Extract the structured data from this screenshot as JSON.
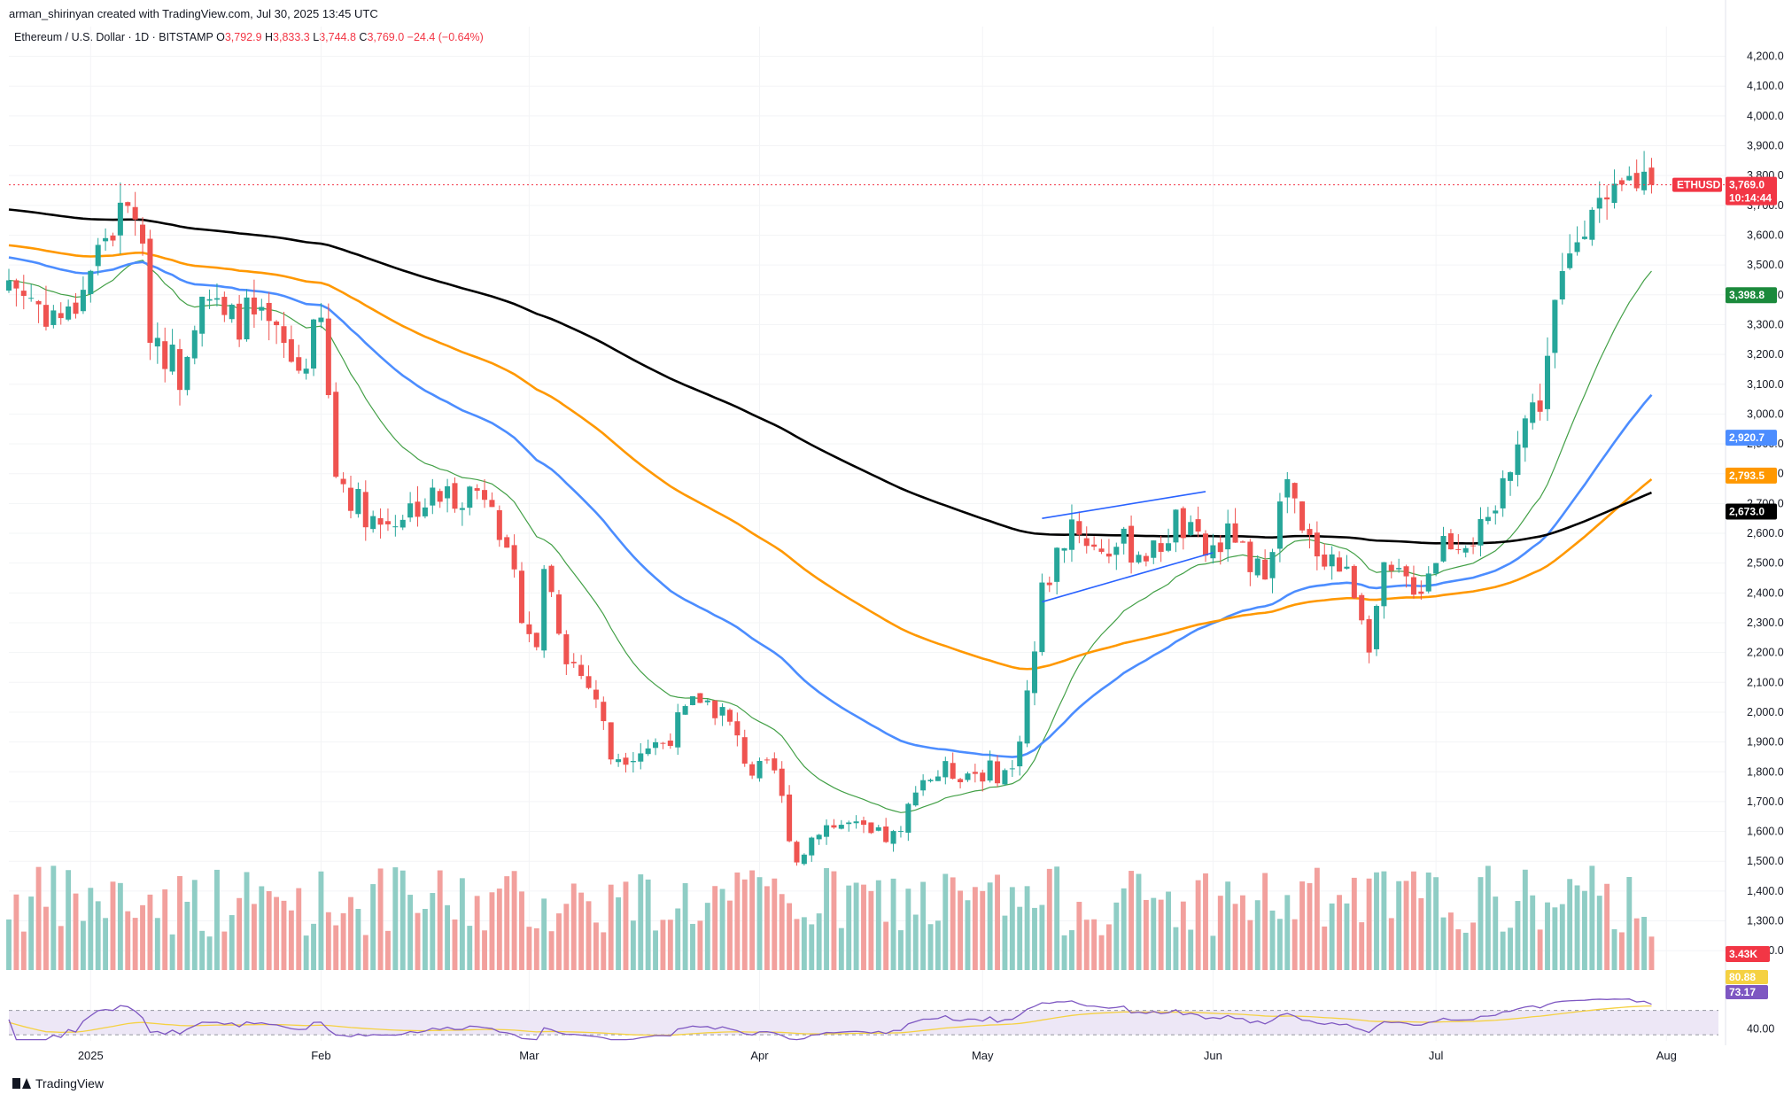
{
  "header": {
    "author_line": "arman_shirinyan created with TradingView.com, Jul 30, 2025 13:45 UTC",
    "symbol_desc": "Ethereum / U.S. Dollar · 1D · BITSTAMP",
    "o_label": "O",
    "o_value": "3,792.9",
    "h_label": "H",
    "h_value": "3,833.3",
    "l_label": "L",
    "l_value": "3,744.8",
    "c_label": "C",
    "c_value": "3,769.0",
    "change": "−24.4 (−0.64%)"
  },
  "footer": {
    "logo_text": "TradingView"
  },
  "colors": {
    "up": "#26a69a",
    "down": "#ef5350",
    "vol_up": "#8fcdc5",
    "vol_down": "#f2a09d",
    "ema_20": "#43a047",
    "ema_50": "#4c8dff",
    "ema_100": "#ff9800",
    "ema_200": "#000000",
    "rsi_line": "#7e57c2",
    "rsi_ma": "#f5d142",
    "rsi_band": "#ede7f6",
    "channel": "#2962ff",
    "price_line": "#f23645"
  },
  "chart_data": {
    "type": "candlestick",
    "y_axis": {
      "min": 1300,
      "max": 4200,
      "ticks": [
        "4,200.0",
        "4,100.0",
        "4,000.0",
        "3,900.0",
        "3,800.0",
        "3,700.0",
        "3,600.0",
        "3,500.0",
        "3,400.0",
        "3,300.0",
        "3,200.0",
        "3,100.0",
        "3,000.0",
        "2,900.0",
        "2,800.0",
        "2,700.0",
        "2,600.0",
        "2,500.0",
        "2,400.0",
        "2,300.0",
        "2,200.0",
        "2,100.0",
        "2,000.0",
        "1,900.0",
        "1,800.0",
        "1,700.0",
        "1,600.0",
        "1,500.0",
        "1,400.0",
        "1,300.0",
        "1,200.0"
      ]
    },
    "x_axis": {
      "start_date": "2024-12-21",
      "end_date": "2025-08-08",
      "ticks": [
        {
          "label": "2025",
          "date": "2025-01-01"
        },
        {
          "label": "Feb",
          "date": "2025-02-01"
        },
        {
          "label": "Mar",
          "date": "2025-03-01"
        },
        {
          "label": "Apr",
          "date": "2025-04-01"
        },
        {
          "label": "May",
          "date": "2025-05-01"
        },
        {
          "label": "Jun",
          "date": "2025-06-01"
        },
        {
          "label": "Jul",
          "date": "2025-07-01"
        },
        {
          "label": "Aug",
          "date": "2025-08-01"
        }
      ]
    },
    "last_price": {
      "symbol": "ETHUSD",
      "value": "3,769.0",
      "countdown": "10:14:44"
    },
    "moving_averages": [
      {
        "name": "EMA 20",
        "last_label": "3,398.8",
        "color": "#43a047"
      },
      {
        "name": "EMA 50",
        "last_label": "2,920.7",
        "color": "#4c8dff"
      },
      {
        "name": "EMA 100",
        "last_label": "2,793.5",
        "color": "#ff9800"
      },
      {
        "name": "EMA 200",
        "last_label": "2,673.0",
        "color": "#000000"
      }
    ],
    "volume_last_label": "3.43K",
    "rsi": {
      "value_label": "73.17",
      "ma_label": "80.88",
      "scale_label": "40.00",
      "upper": 70,
      "lower": 30
    },
    "channel": {
      "upper": [
        [
          "2025-05-09",
          2650
        ],
        [
          "2025-05-31",
          2740
        ]
      ],
      "lower": [
        [
          "2025-05-09",
          2370
        ],
        [
          "2025-06-01",
          2535
        ]
      ]
    },
    "anchors": [
      [
        "2024-12-21",
        3450
      ],
      [
        "2024-12-26",
        3350
      ],
      [
        "2024-12-29",
        3320
      ],
      [
        "2025-01-03",
        3600
      ],
      [
        "2025-01-07",
        3700
      ],
      [
        "2025-01-09",
        3300
      ],
      [
        "2025-01-13",
        3140
      ],
      [
        "2025-01-16",
        3450
      ],
      [
        "2025-01-19",
        3300
      ],
      [
        "2025-01-22",
        3330
      ],
      [
        "2025-01-26",
        3250
      ],
      [
        "2025-01-29",
        3150
      ],
      [
        "2025-02-01",
        3300
      ],
      [
        "2025-02-03",
        2800
      ],
      [
        "2025-02-06",
        2700
      ],
      [
        "2025-02-09",
        2630
      ],
      [
        "2025-02-14",
        2700
      ],
      [
        "2025-02-20",
        2740
      ],
      [
        "2025-02-24",
        2750
      ],
      [
        "2025-02-26",
        2500
      ],
      [
        "2025-03-02",
        2200
      ],
      [
        "2025-03-03",
        2500
      ],
      [
        "2025-03-06",
        2200
      ],
      [
        "2025-03-10",
        2050
      ],
      [
        "2025-03-12",
        1850
      ],
      [
        "2025-03-19",
        1900
      ],
      [
        "2025-03-24",
        2050
      ],
      [
        "2025-03-27",
        2000
      ],
      [
        "2025-03-31",
        1800
      ],
      [
        "2025-04-03",
        1800
      ],
      [
        "2025-04-06",
        1500
      ],
      [
        "2025-04-09",
        1620
      ],
      [
        "2025-04-13",
        1620
      ],
      [
        "2025-04-16",
        1580
      ],
      [
        "2025-04-20",
        1580
      ],
      [
        "2025-04-22",
        1770
      ],
      [
        "2025-04-26",
        1800
      ],
      [
        "2025-04-30",
        1800
      ],
      [
        "2025-05-05",
        1800
      ],
      [
        "2025-05-08",
        2200
      ],
      [
        "2025-05-09",
        2400
      ],
      [
        "2025-05-13",
        2650
      ],
      [
        "2025-05-16",
        2550
      ],
      [
        "2025-05-20",
        2560
      ],
      [
        "2025-05-24",
        2530
      ],
      [
        "2025-05-27",
        2640
      ],
      [
        "2025-05-31",
        2530
      ],
      [
        "2025-06-04",
        2600
      ],
      [
        "2025-06-06",
        2440
      ],
      [
        "2025-06-08",
        2500
      ],
      [
        "2025-06-11",
        2770
      ],
      [
        "2025-06-13",
        2580
      ],
      [
        "2025-06-17",
        2520
      ],
      [
        "2025-06-20",
        2420
      ],
      [
        "2025-06-22",
        2250
      ],
      [
        "2025-06-24",
        2450
      ],
      [
        "2025-06-29",
        2430
      ],
      [
        "2025-07-02",
        2580
      ],
      [
        "2025-07-08",
        2600
      ],
      [
        "2025-07-10",
        2760
      ],
      [
        "2025-07-12",
        2950
      ],
      [
        "2025-07-15",
        3050
      ],
      [
        "2025-07-17",
        3350
      ],
      [
        "2025-07-20",
        3600
      ],
      [
        "2025-07-22",
        3750
      ],
      [
        "2025-07-24",
        3650
      ],
      [
        "2025-07-27",
        3780
      ],
      [
        "2025-07-29",
        3800
      ],
      [
        "2025-07-30",
        3769
      ]
    ]
  }
}
